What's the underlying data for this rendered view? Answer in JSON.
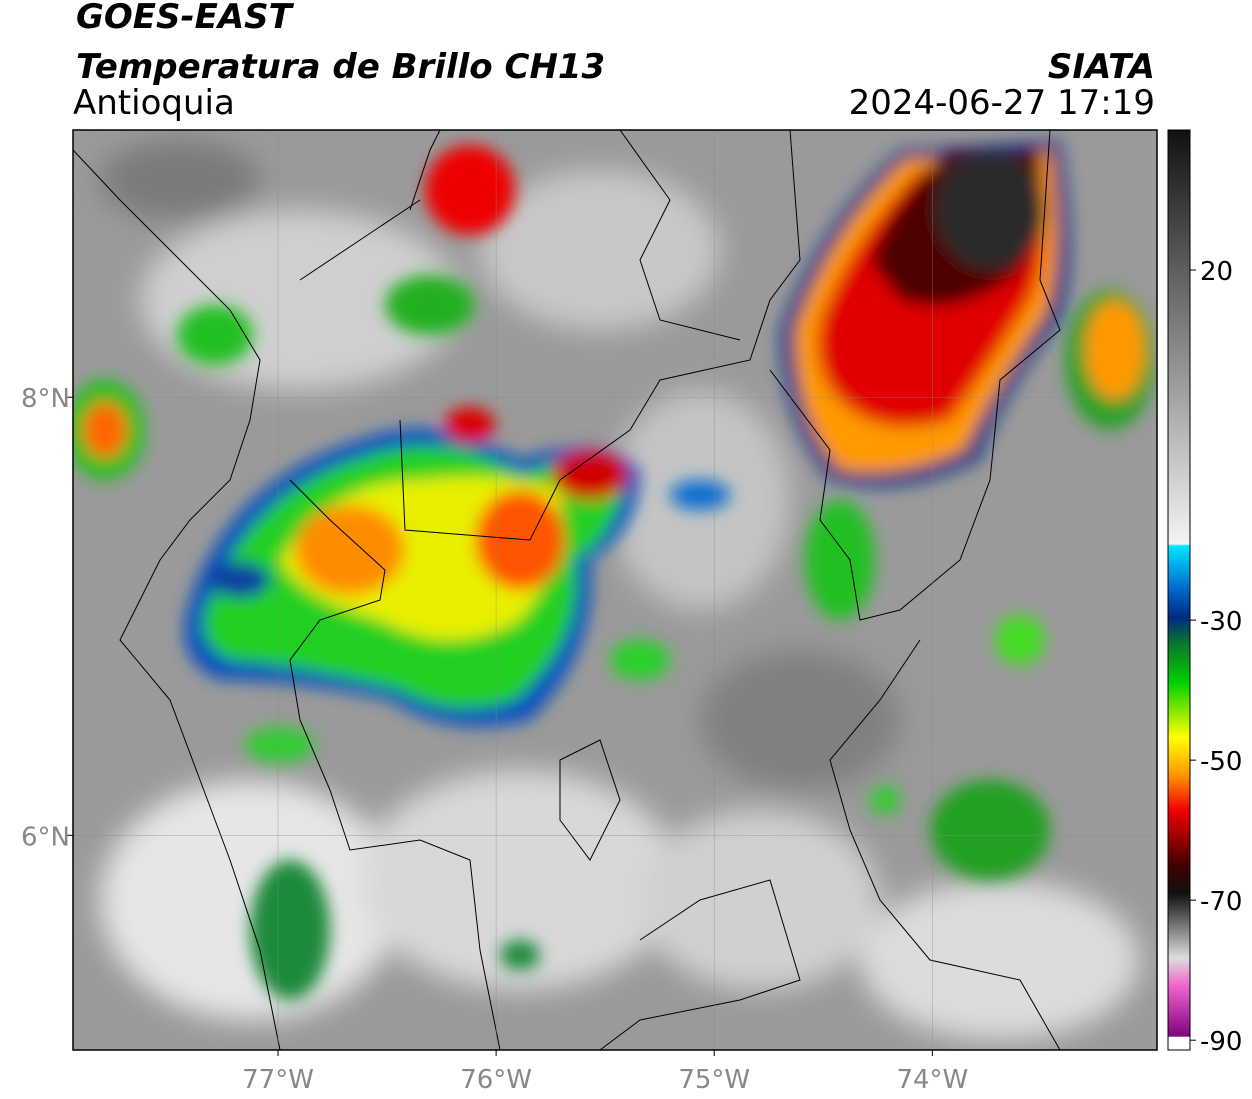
{
  "header": {
    "title": "GOES-EAST",
    "subtitle": "Temperatura de Brillo CH13",
    "region": "Antioquia",
    "source": "SIATA",
    "datetime": "2024-06-27 17:19"
  },
  "map": {
    "lonlim": [
      -77.94,
      -72.97
    ],
    "latlim": [
      5.02,
      9.22
    ],
    "lon_ticks": [
      {
        "value": -77,
        "label": "77°W"
      },
      {
        "value": -76,
        "label": "76°W"
      },
      {
        "value": -75,
        "label": "75°W"
      },
      {
        "value": -74,
        "label": "74°W"
      }
    ],
    "lat_ticks": [
      {
        "value": 8,
        "label": "8°N"
      },
      {
        "value": 6,
        "label": "6°N"
      }
    ]
  },
  "colorbar": {
    "lim": [
      -91.4,
      40
    ],
    "ticks": [
      20,
      -30,
      -50,
      -70,
      -90
    ]
  }
}
